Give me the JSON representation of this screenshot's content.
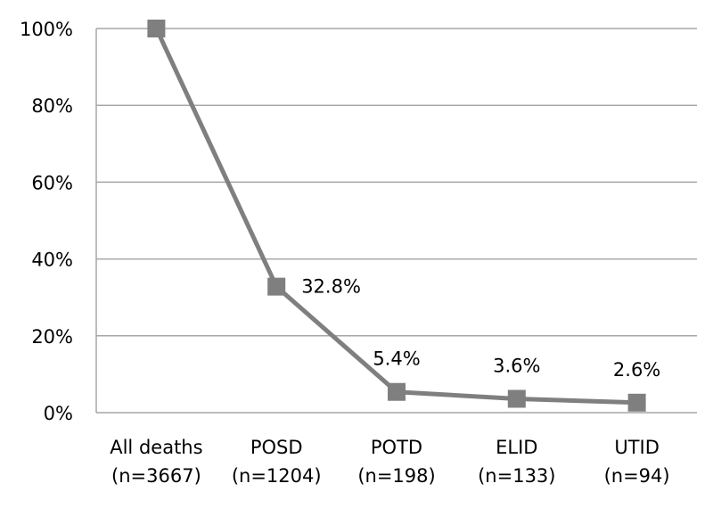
{
  "chart_data": {
    "type": "line",
    "title": "",
    "xlabel": "",
    "ylabel": "",
    "ylim": [
      0,
      100
    ],
    "y_ticks": [
      "0%",
      "20%",
      "40%",
      "60%",
      "80%",
      "100%"
    ],
    "y_tick_values": [
      0,
      20,
      40,
      60,
      80,
      100
    ],
    "grid": true,
    "legend": "none",
    "categories": [
      [
        "All deaths",
        "(n=3667)"
      ],
      [
        "POSD",
        "(n=1204)"
      ],
      [
        "POTD",
        "(n=198)"
      ],
      [
        "ELID",
        "(n=133)"
      ],
      [
        "UTID",
        "(n=94)"
      ]
    ],
    "series": [
      {
        "values": [
          100,
          32.8,
          5.4,
          3.6,
          2.6
        ],
        "labels": [
          "",
          "32.8%",
          "5.4%",
          "3.6%",
          "2.6%"
        ],
        "color": "#7f7f7f"
      }
    ],
    "gridline_color": "#a6a6a6"
  }
}
